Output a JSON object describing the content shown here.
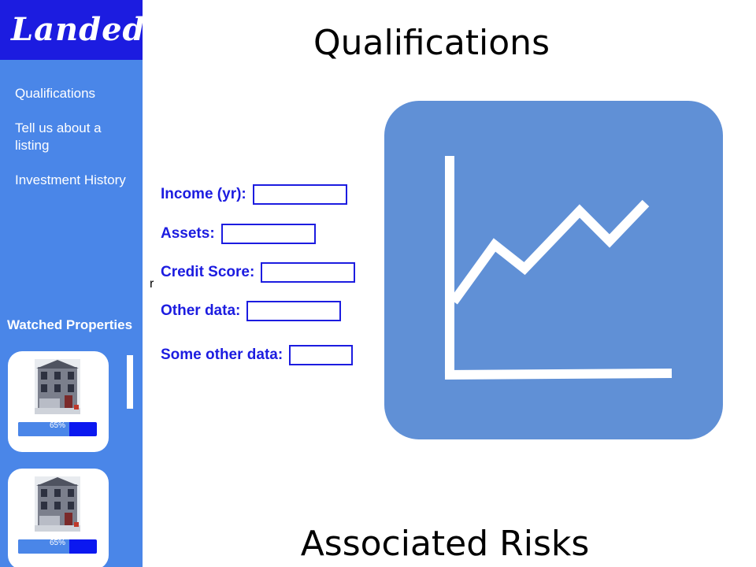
{
  "brand": {
    "logo_text": "Landed."
  },
  "sidebar": {
    "nav": [
      {
        "label": "Qualifications"
      },
      {
        "label": "Tell us about a listing"
      },
      {
        "label": "Investment History"
      }
    ],
    "watched_title": "Watched Properties",
    "properties": [
      {
        "progress_label": "65%",
        "progress": 0.65
      },
      {
        "progress_label": "65%",
        "progress": 0.65
      }
    ]
  },
  "main": {
    "title": "Qualifications",
    "stray_text": "r",
    "form": {
      "fields": [
        {
          "label": "Income (yr):",
          "value": ""
        },
        {
          "label": "Assets:",
          "value": ""
        },
        {
          "label": "Credit Score:",
          "value": ""
        },
        {
          "label": "Other data:",
          "value": ""
        },
        {
          "label": "Some other data:",
          "value": ""
        }
      ]
    },
    "chart_icon": "line-chart-icon",
    "section_title": "Associated Risks"
  },
  "colors": {
    "sidebar_bg": "#4a86e8",
    "logo_bg": "#1c1ce0",
    "form_label": "#1c1ce0",
    "chart_card": "#6090d6",
    "progress_bar": "#0b18f0"
  }
}
